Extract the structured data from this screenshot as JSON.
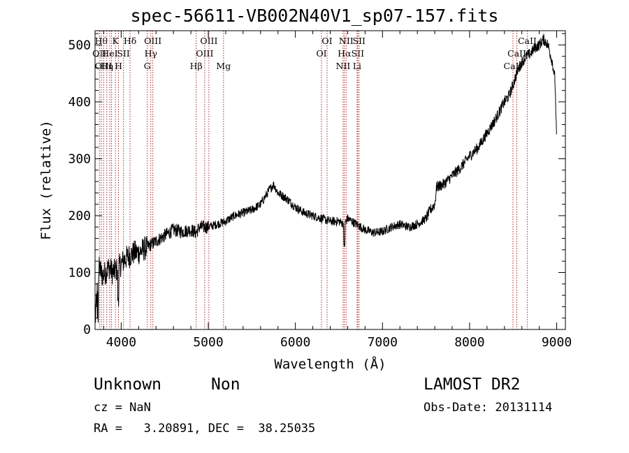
{
  "title": "spec-56611-VB002N40V1_sp07-157.fits",
  "chart_data": {
    "type": "line",
    "xlabel": "Wavelength (Å)",
    "ylabel": "Flux (relative)",
    "xlim": [
      3700,
      9100
    ],
    "ylim": [
      0,
      525
    ],
    "xticks": [
      4000,
      5000,
      6000,
      7000,
      8000,
      9000
    ],
    "yticks": [
      0,
      100,
      200,
      300,
      400,
      500
    ],
    "grid": false,
    "line_color": "#000000",
    "marker_color": "#b22222",
    "spectrum_anchors": {
      "x": [
        3700,
        3720,
        3750,
        3780,
        3820,
        3860,
        3900,
        3950,
        4000,
        4050,
        4100,
        4150,
        4200,
        4250,
        4300,
        4350,
        4400,
        4500,
        4600,
        4700,
        4800,
        4860,
        4900,
        5000,
        5100,
        5200,
        5300,
        5400,
        5500,
        5600,
        5700,
        5750,
        5800,
        5900,
        6000,
        6100,
        6200,
        6300,
        6400,
        6500,
        6560,
        6600,
        6700,
        6800,
        6900,
        7000,
        7100,
        7200,
        7300,
        7400,
        7500,
        7550,
        7600,
        7620,
        7700,
        7800,
        7900,
        8000,
        8100,
        8200,
        8300,
        8400,
        8450,
        8500,
        8550,
        8600,
        8650,
        8700,
        8750,
        8800,
        8850,
        8900,
        8950,
        8980,
        9000
      ],
      "y": [
        20,
        60,
        110,
        95,
        100,
        110,
        100,
        105,
        115,
        125,
        130,
        135,
        135,
        140,
        145,
        150,
        155,
        165,
        175,
        172,
        175,
        170,
        180,
        180,
        185,
        190,
        200,
        205,
        210,
        220,
        245,
        255,
        240,
        230,
        215,
        205,
        200,
        195,
        190,
        190,
        185,
        195,
        185,
        175,
        170,
        172,
        180,
        185,
        180,
        185,
        195,
        210,
        220,
        250,
        255,
        270,
        285,
        305,
        320,
        345,
        370,
        400,
        410,
        430,
        455,
        470,
        480,
        485,
        495,
        500,
        510,
        500,
        470,
        440,
        330
      ]
    },
    "line_markers": [
      {
        "w": 3750,
        "label": "OII",
        "row": 1
      },
      {
        "w": 3771,
        "label": "Hθ",
        "row": 0
      },
      {
        "w": 3798,
        "label": "OIII",
        "row": 2
      },
      {
        "w": 3835,
        "label": "Hη",
        "row": 2
      },
      {
        "w": 3869,
        "label": "HeI",
        "row": 1
      },
      {
        "w": 3889,
        "label": "",
        "row": 0
      },
      {
        "w": 3934,
        "label": "K",
        "row": 0
      },
      {
        "w": 3969,
        "label": "H",
        "row": 2
      },
      {
        "w": 4026,
        "label": "SII",
        "row": 1
      },
      {
        "w": 4102,
        "label": "Hδ",
        "row": 0
      },
      {
        "w": 4300,
        "label": "G",
        "row": 2
      },
      {
        "w": 4340,
        "label": "Hγ",
        "row": 1
      },
      {
        "w": 4363,
        "label": "OIII",
        "row": 0
      },
      {
        "w": 4861,
        "label": "Hβ",
        "row": 2
      },
      {
        "w": 4959,
        "label": "OIII",
        "row": 1
      },
      {
        "w": 5007,
        "label": "OIII",
        "row": 0
      },
      {
        "w": 5175,
        "label": "Mg",
        "row": 2
      },
      {
        "w": 6300,
        "label": "OI",
        "row": 1
      },
      {
        "w": 6364,
        "label": "OI",
        "row": 0
      },
      {
        "w": 6548,
        "label": "NII",
        "row": 2
      },
      {
        "w": 6563,
        "label": "Hα",
        "row": 1
      },
      {
        "w": 6583,
        "label": "NII",
        "row": 0
      },
      {
        "w": 6708,
        "label": "Li",
        "row": 2
      },
      {
        "w": 6716,
        "label": "SII",
        "row": 1
      },
      {
        "w": 6731,
        "label": "SII",
        "row": 0
      },
      {
        "w": 8498,
        "label": "CaII",
        "row": 2
      },
      {
        "w": 8542,
        "label": "CaII",
        "row": 1
      },
      {
        "w": 8662,
        "label": "CaII",
        "row": 0
      }
    ]
  },
  "info": {
    "class": "Unknown",
    "subclass": "Non",
    "survey": "LAMOST DR2",
    "cz": "cz = NaN",
    "obs_date": "Obs-Date: 20131114",
    "coords": "RA =   3.20891, DEC =  38.25035"
  }
}
